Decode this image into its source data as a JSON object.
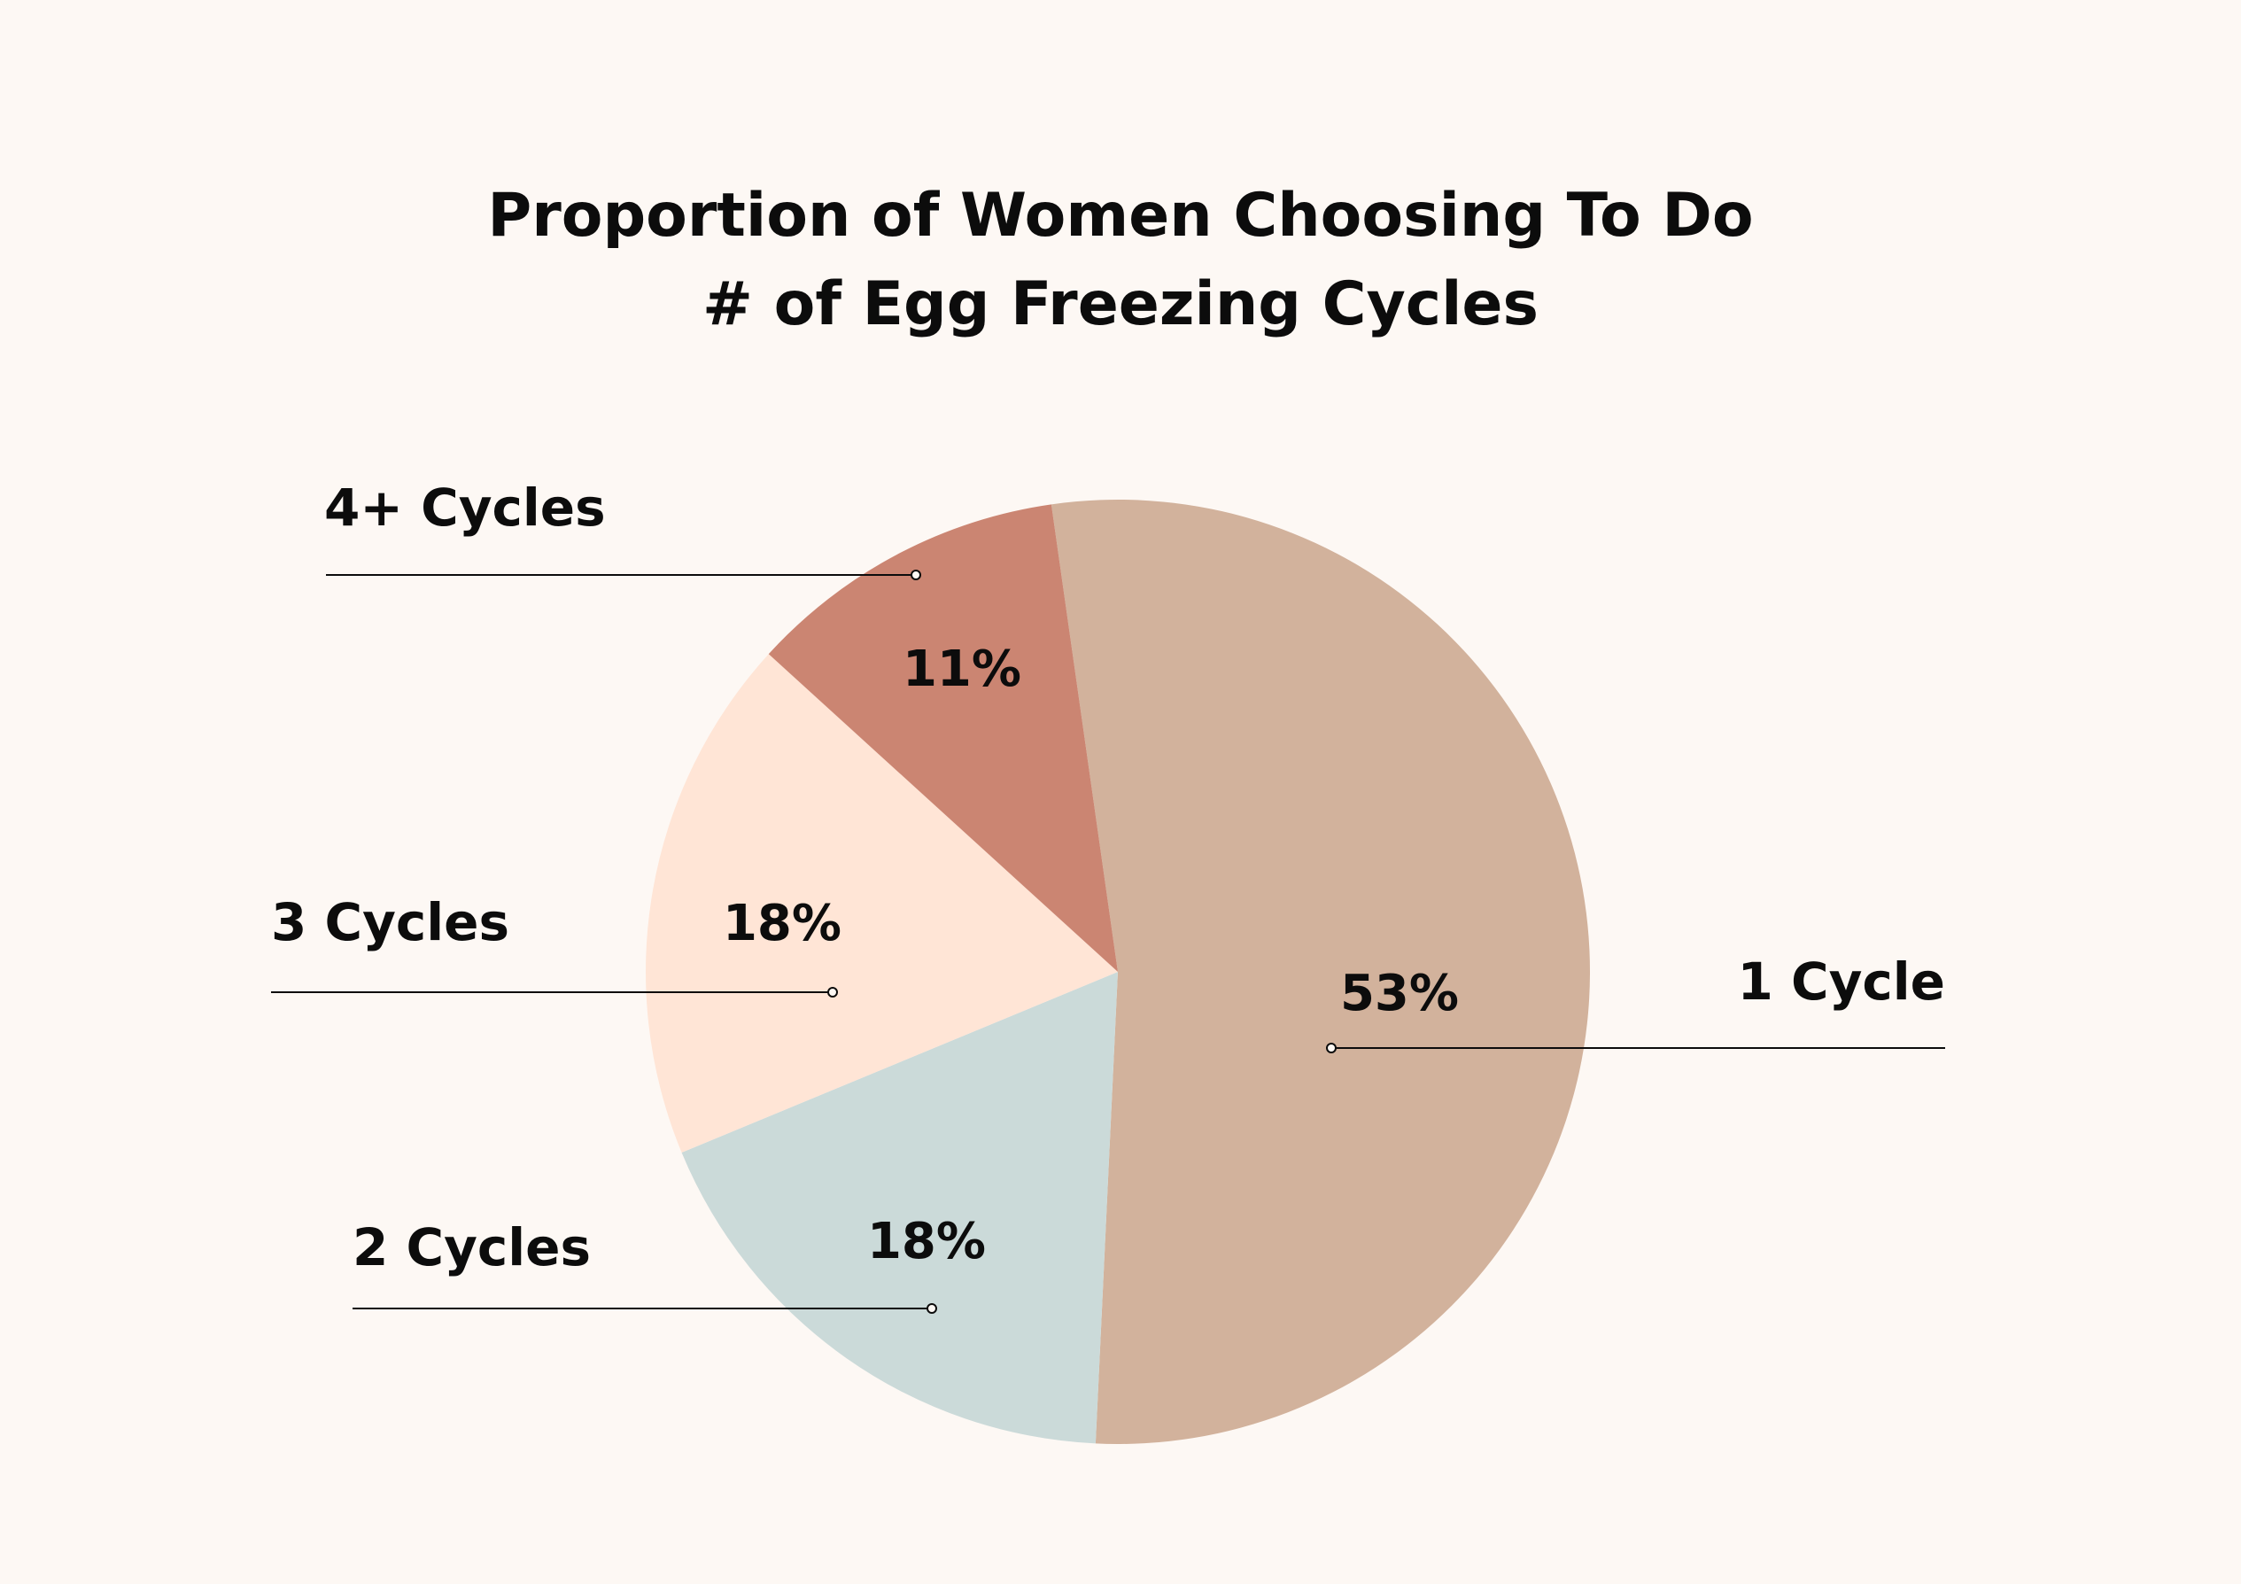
{
  "chart_data": {
    "type": "pie",
    "title": "Proportion of Women Choosing To Do # of Egg Freezing Cycles",
    "title_lines": [
      "Proportion of Women Choosing To Do",
      "# of Egg Freezing Cycles"
    ],
    "slices": [
      {
        "label": "1 Cycle",
        "value": 53,
        "value_label": "53%",
        "color": "#d2b29c"
      },
      {
        "label": "2 Cycles",
        "value": 18,
        "value_label": "18%",
        "color": "#cbdad9"
      },
      {
        "label": "3 Cycles",
        "value": 18,
        "value_label": "18%",
        "color": "#ffe5d6"
      },
      {
        "label": "4+ Cycles",
        "value": 11,
        "value_label": "11%",
        "color": "#cb8572"
      }
    ],
    "background_color": "#fdf8f4",
    "legend": "none"
  }
}
